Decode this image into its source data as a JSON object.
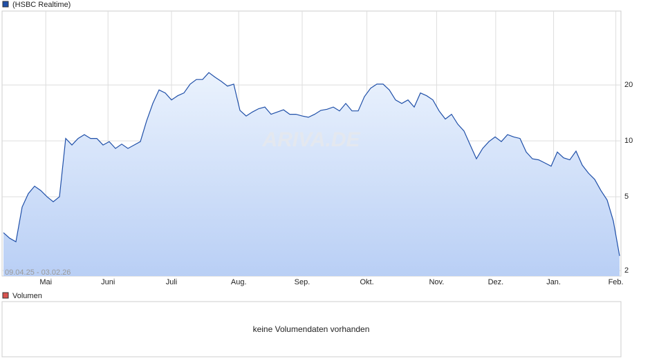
{
  "chart_data": {
    "type": "line",
    "series": [
      {
        "name": "(HSBC Realtime)",
        "color": "#1f4fa8",
        "values": [
          3.2,
          2.99,
          2.86,
          4.4,
          5.2,
          5.7,
          5.4,
          5.0,
          4.7,
          5.0,
          10.3,
          9.5,
          10.3,
          10.8,
          10.3,
          10.3,
          9.5,
          9.9,
          9.1,
          9.6,
          9.1,
          9.5,
          9.9,
          12.8,
          15.9,
          18.8,
          18.1,
          16.6,
          17.5,
          18.1,
          20.2,
          21.4,
          21.4,
          23.3,
          22,
          20.9,
          19.7,
          20.2,
          14.6,
          13.6,
          14.3,
          14.9,
          15.2,
          13.9,
          14.3,
          14.7,
          13.9,
          13.9,
          13.6,
          13.4,
          13.9,
          14.6,
          14.8,
          15.2,
          14.5,
          15.9,
          14.5,
          14.5,
          17.3,
          19.2,
          20.2,
          20.2,
          18.8,
          16.6,
          15.9,
          16.6,
          15.2,
          18.1,
          17.5,
          16.6,
          14.5,
          13.1,
          13.9,
          12.3,
          11.3,
          9.5,
          8.0,
          9.1,
          9.9,
          10.5,
          9.9,
          10.8,
          10.5,
          10.3,
          8.7,
          8.0,
          7.9,
          7.6,
          7.3,
          8.7,
          8.1,
          7.9,
          8.8,
          7.4,
          6.7,
          6.2,
          5.4,
          4.8,
          3.7,
          2.4
        ]
      }
    ],
    "xlim": [
      0,
      99
    ],
    "xticks": [
      {
        "value": 6.8,
        "label": "Mai"
      },
      {
        "value": 16.8,
        "label": "Juni"
      },
      {
        "value": 27.0,
        "label": "Juli"
      },
      {
        "value": 37.8,
        "label": "Aug."
      },
      {
        "value": 48.0,
        "label": "Sep."
      },
      {
        "value": 58.4,
        "label": "Okt."
      },
      {
        "value": 69.6,
        "label": "Nov."
      },
      {
        "value": 79.1,
        "label": "Dez."
      },
      {
        "value": 88.4,
        "label": "Jan."
      },
      {
        "value": 98.4,
        "label": "Feb."
      }
    ],
    "ylim": [
      1.87,
      50
    ],
    "yticks": [
      2,
      5,
      10,
      20
    ],
    "log_scale": true,
    "grid": true,
    "date_range": "09.04.25 - 03.02.26",
    "watermark": "ARIVA.DE"
  },
  "volume": {
    "legend": "Volumen",
    "legend_color": "#d9534f",
    "message": "keine Volumendaten vorhanden"
  }
}
